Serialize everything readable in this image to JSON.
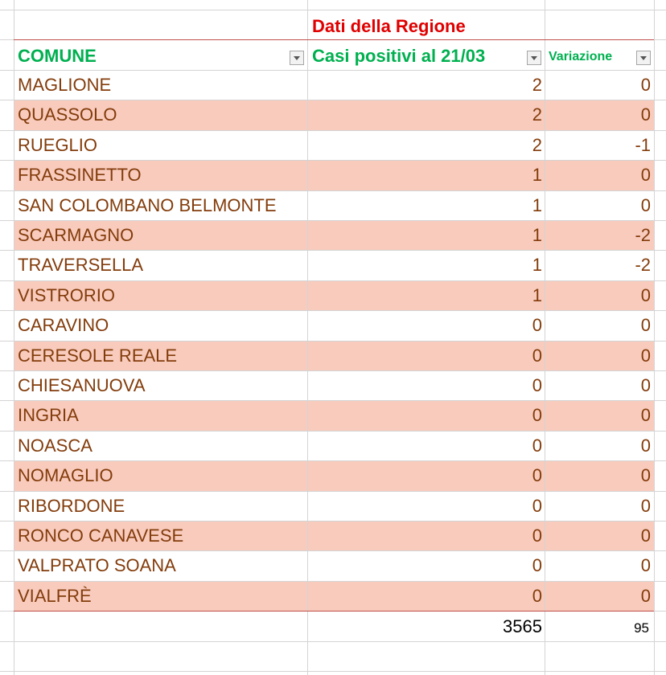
{
  "header": {
    "group": "Dati della Regione",
    "columns": [
      "COMUNE",
      "Casi positivi al 21/03",
      "Variazione"
    ]
  },
  "table": {
    "rows": [
      [
        "MAGLIONE",
        2,
        0
      ],
      [
        "QUASSOLO",
        2,
        0
      ],
      [
        "RUEGLIO",
        2,
        -1
      ],
      [
        "FRASSINETTO",
        1,
        0
      ],
      [
        "SAN COLOMBANO BELMONTE",
        1,
        0
      ],
      [
        "SCARMAGNO",
        1,
        -2
      ],
      [
        "TRAVERSELLA",
        1,
        -2
      ],
      [
        "VISTRORIO",
        1,
        0
      ],
      [
        "CARAVINO",
        0,
        0
      ],
      [
        "CERESOLE REALE",
        0,
        0
      ],
      [
        "CHIESANUOVA",
        0,
        0
      ],
      [
        "INGRIA",
        0,
        0
      ],
      [
        "NOASCA",
        0,
        0
      ],
      [
        "NOMAGLIO",
        0,
        0
      ],
      [
        "RIBORDONE",
        0,
        0
      ],
      [
        "RONCO CANAVESE",
        0,
        0
      ],
      [
        "VALPRATO SOANA",
        0,
        0
      ],
      [
        "VIALFRÈ",
        0,
        0
      ]
    ],
    "totals": [
      3565,
      95
    ]
  }
}
